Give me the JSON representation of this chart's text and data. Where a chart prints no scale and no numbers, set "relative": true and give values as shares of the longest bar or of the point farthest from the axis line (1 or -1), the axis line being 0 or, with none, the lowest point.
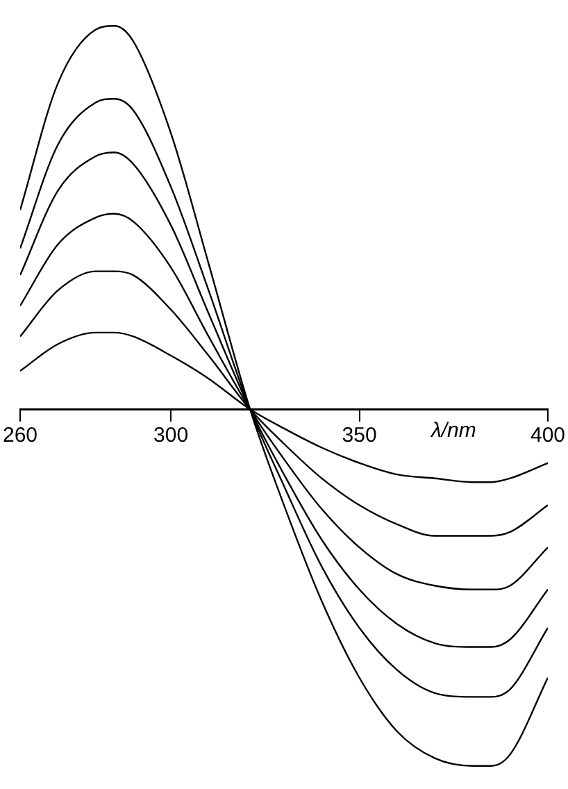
{
  "chart_data": {
    "type": "line",
    "relative": true,
    "xlabel": "λ/nm",
    "xlim": [
      260,
      400
    ],
    "xticks": [
      260,
      300,
      350,
      400
    ],
    "grid": false,
    "legend": false,
    "marker": "none",
    "line_style": "solid",
    "tick_labels": "x",
    "x": [
      260,
      270,
      280,
      285,
      290,
      300,
      310,
      321,
      330,
      340,
      350,
      360,
      370,
      380,
      385,
      390,
      400
    ],
    "series": [
      {
        "color": "#000000",
        "values": [
          0.52,
          0.85,
          0.99,
          1.0,
          0.96,
          0.72,
          0.38,
          0,
          -0.25,
          -0.5,
          -0.7,
          -0.84,
          -0.91,
          -0.93,
          -0.93,
          -0.9,
          -0.7
        ]
      },
      {
        "color": "#000000",
        "values": [
          0.42,
          0.69,
          0.8,
          0.81,
          0.78,
          0.58,
          0.31,
          0,
          -0.2,
          -0.41,
          -0.57,
          -0.68,
          -0.74,
          -0.75,
          -0.75,
          -0.73,
          -0.57
        ]
      },
      {
        "color": "#000000",
        "values": [
          0.35,
          0.57,
          0.66,
          0.67,
          0.64,
          0.48,
          0.25,
          0,
          -0.17,
          -0.34,
          -0.47,
          -0.56,
          -0.61,
          -0.62,
          -0.62,
          -0.6,
          -0.47
        ]
      },
      {
        "color": "#000000",
        "values": [
          0.27,
          0.43,
          0.5,
          0.51,
          0.49,
          0.37,
          0.19,
          0,
          -0.13,
          -0.26,
          -0.36,
          -0.43,
          -0.46,
          -0.47,
          -0.47,
          -0.46,
          -0.36
        ]
      },
      {
        "color": "#000000",
        "values": [
          0.19,
          0.31,
          0.36,
          0.36,
          0.35,
          0.26,
          0.14,
          0,
          -0.09,
          -0.18,
          -0.25,
          -0.3,
          -0.33,
          -0.33,
          -0.33,
          -0.32,
          -0.25
        ]
      },
      {
        "color": "#000000",
        "values": [
          0.1,
          0.17,
          0.2,
          0.2,
          0.19,
          0.14,
          0.08,
          0,
          -0.05,
          -0.1,
          -0.14,
          -0.17,
          -0.18,
          -0.19,
          -0.19,
          -0.18,
          -0.14
        ]
      }
    ]
  }
}
